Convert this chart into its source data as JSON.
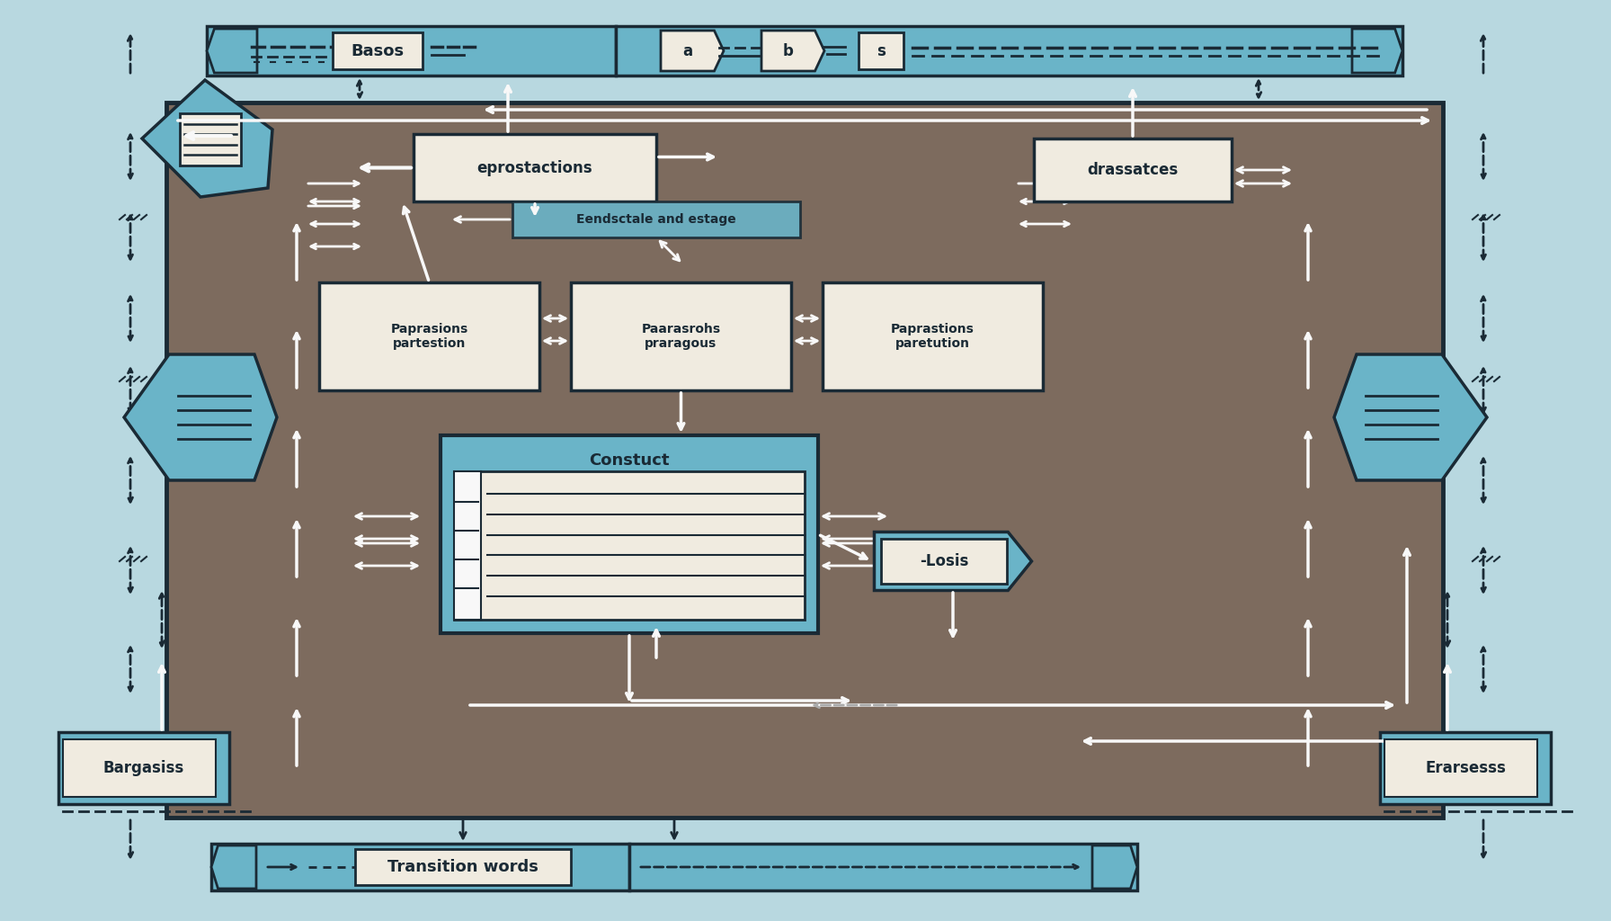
{
  "bg_color": "#b8d8e0",
  "main_bg": "#7d6b5e",
  "blue_light": "#6ab4c8",
  "blue_mid": "#5aa0b8",
  "cream": "#f0ebe0",
  "dark": "#1a2a35",
  "white": "#f8f8f8",
  "top_bar_label": "Basos",
  "top_bar_a": "a",
  "top_bar_b": "b",
  "top_bar_s": "s",
  "box_topleft_label": "eprostactions",
  "box_topright_label": "drassatces",
  "box_center_label": "Eendsctale and estage",
  "box_left1_label": "Paprasions\npartestion",
  "box_center1_label": "Paarasrohs\npraragous",
  "box_right1_label": "Paprastions\nparetution",
  "box_construct_label": "Constuct",
  "box_losis_label": "-Losis",
  "box_bargasis_label": "Bargasiss",
  "box_erarsesss_label": "Erarsesss",
  "bottom_bar_label": "Transition words"
}
